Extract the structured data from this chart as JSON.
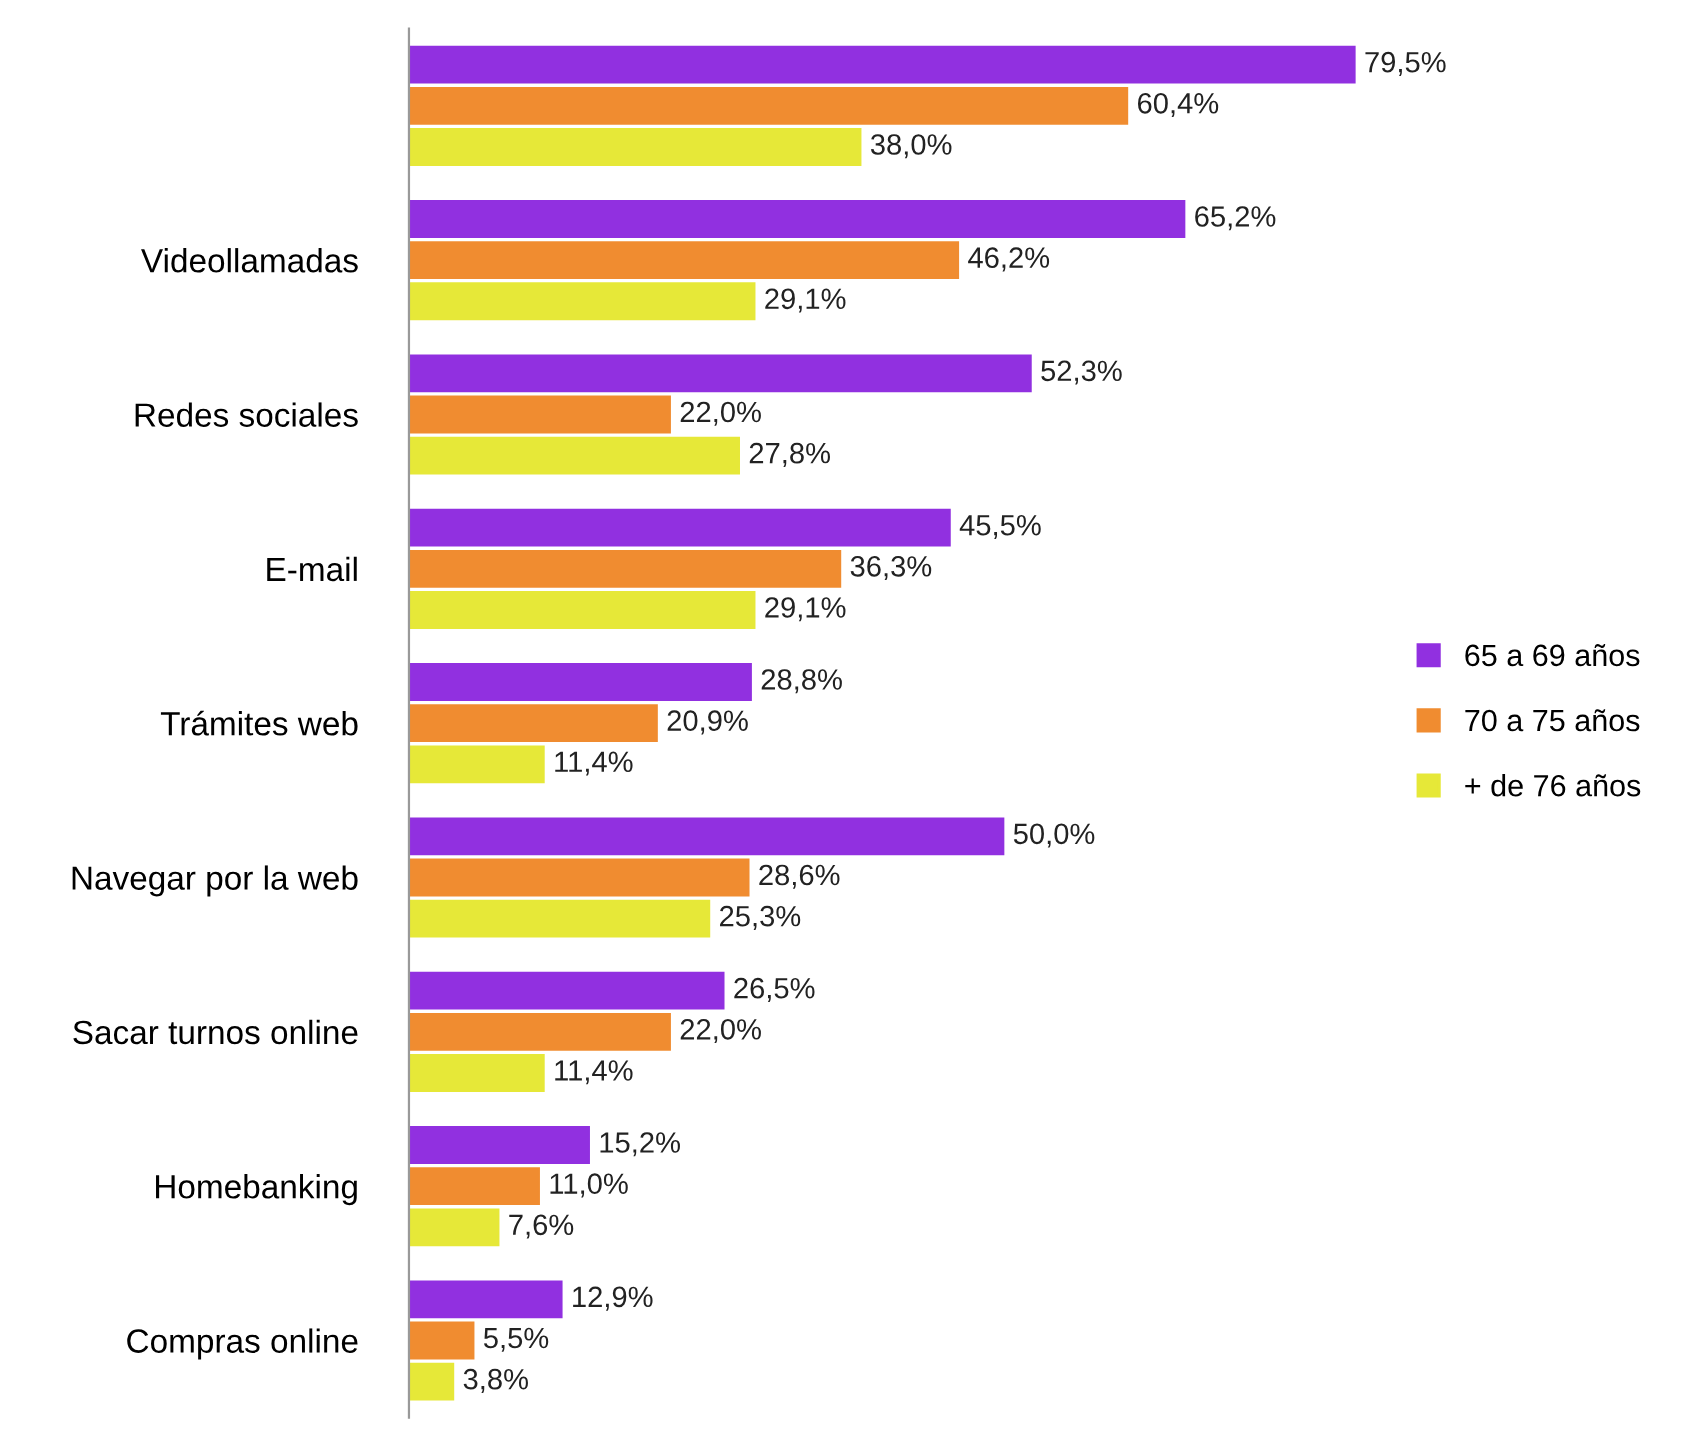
{
  "chart_data": {
    "type": "bar",
    "orientation": "horizontal",
    "categories": [
      null,
      "Videollamadas",
      "Redes sociales",
      "E-mail",
      "Trámites web",
      "Navegar por la web",
      "Sacar turnos online",
      "Homebanking",
      "Compras online"
    ],
    "series": [
      {
        "name": "65 a 69 años",
        "color": "#9130e0",
        "values": [
          79.5,
          65.2,
          52.3,
          45.5,
          28.8,
          50.0,
          26.5,
          15.2,
          12.9
        ],
        "value_labels": [
          "79,5%",
          "65,2%",
          "52,3%",
          "45,5%",
          "28,8%",
          "50,0%",
          "26,5%",
          "15,2%",
          "12,9%"
        ]
      },
      {
        "name": "70 a 75 años",
        "color": "#f08c30",
        "values": [
          60.4,
          46.2,
          22.0,
          36.3,
          20.9,
          28.6,
          22.0,
          11.0,
          5.5
        ],
        "value_labels": [
          "60,4%",
          "46,2%",
          "22,0%",
          "36,3%",
          "20,9%",
          "28,6%",
          "22,0%",
          "11,0%",
          "5,5%"
        ]
      },
      {
        "name": "+ de 76 años",
        "color": "#e6e838",
        "values": [
          38.0,
          29.1,
          27.8,
          29.1,
          11.4,
          25.3,
          11.4,
          7.6,
          3.8
        ],
        "value_labels": [
          "38,0%",
          "29,1%",
          "27,8%",
          "29,1%",
          "11,4%",
          "25,3%",
          "11,4%",
          "7,6%",
          "3,8%"
        ]
      }
    ],
    "legend": "right",
    "grid": false
  }
}
